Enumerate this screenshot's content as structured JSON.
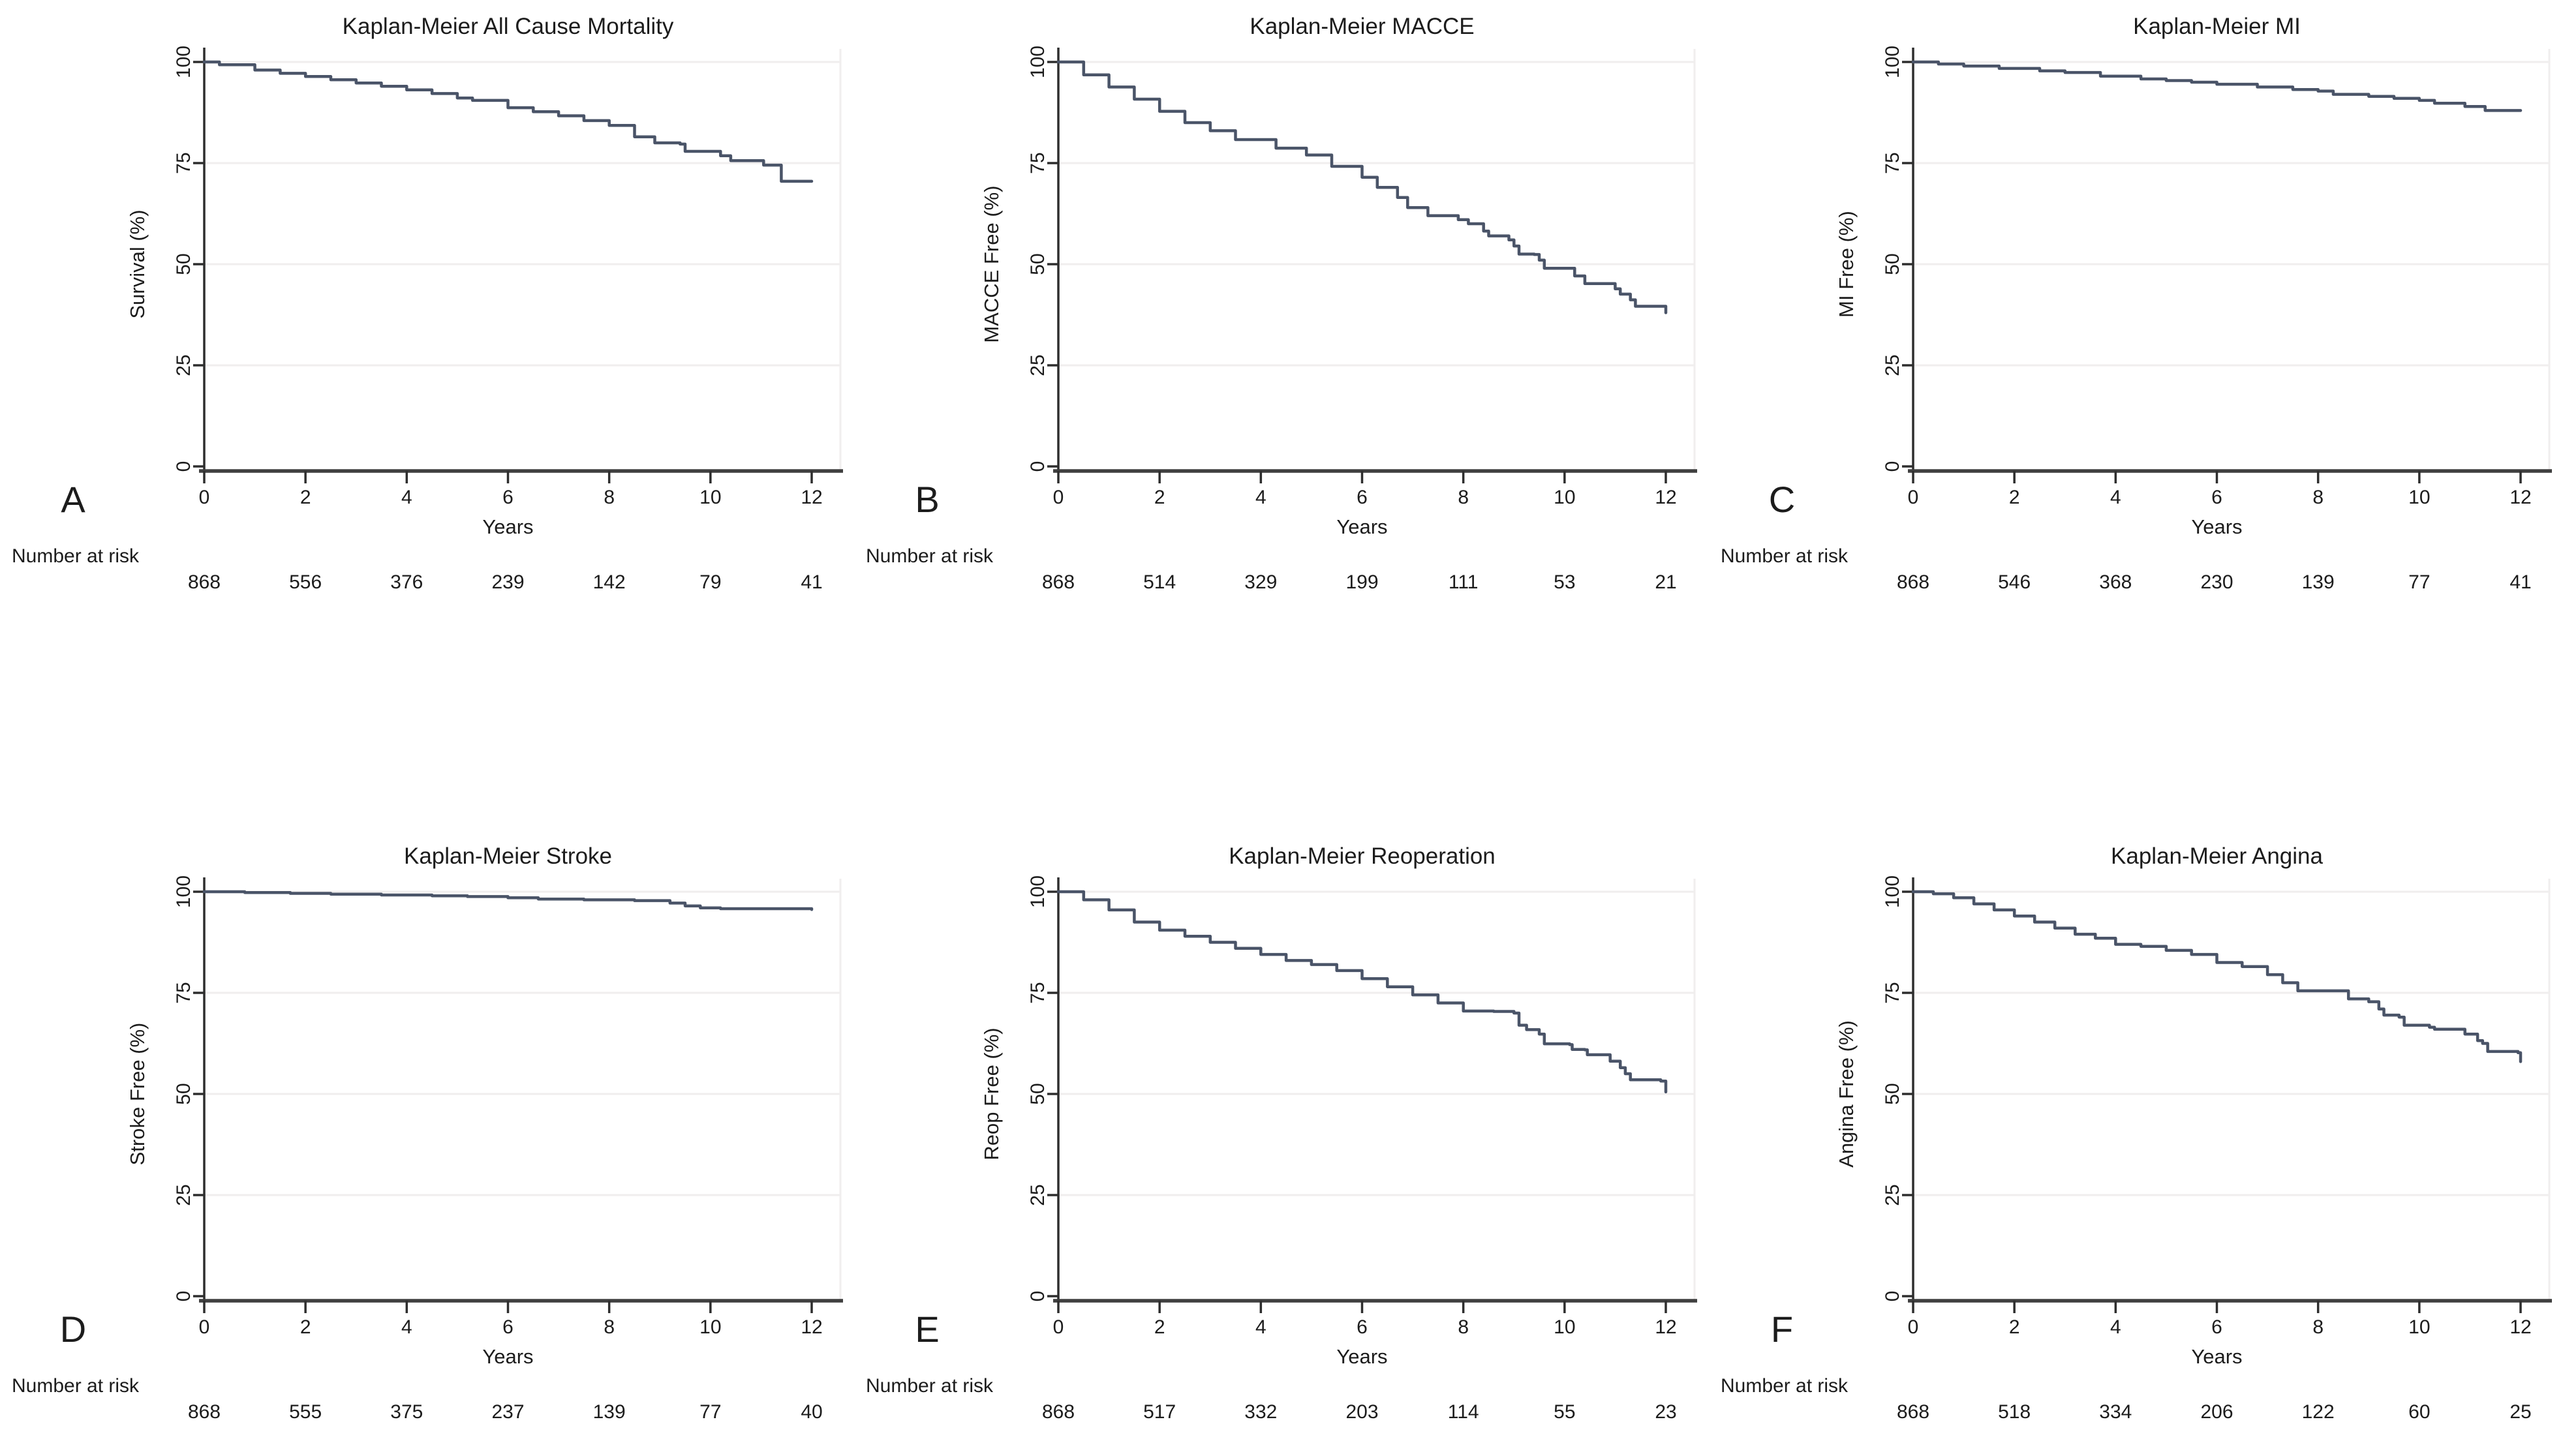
{
  "figure": {
    "number_at_risk_label": "Number at risk",
    "line_color": "#4a5468",
    "axis_color": "#3f3f3f",
    "grid_color": "#f0eeee",
    "text_color": "#1c1c1c",
    "background_color": "#ffffff",
    "panel_labels": [
      "A",
      "B",
      "C",
      "D",
      "E",
      "F"
    ]
  },
  "chart_data": [
    {
      "panel_label": "A",
      "type": "line",
      "step": true,
      "title": "Kaplan-Meier All Cause Mortality",
      "xlabel": "Years",
      "ylabel": "Survival (%)",
      "xlim": [
        0,
        12
      ],
      "ylim": [
        0,
        100
      ],
      "xticks": [
        0,
        2,
        4,
        6,
        8,
        10,
        12
      ],
      "yticks": [
        0,
        25,
        50,
        75,
        100
      ],
      "legend": "none",
      "grid": "horizontal",
      "x": [
        0,
        0.3,
        1,
        1.5,
        2,
        2.5,
        3,
        3.5,
        4,
        4.5,
        5,
        5.3,
        6,
        6.5,
        7,
        7.5,
        8,
        8.5,
        8.9,
        9.4,
        9.5,
        10.1,
        10.2,
        10.4,
        11.0,
        11.05,
        11.3,
        11.4,
        12
      ],
      "y": [
        100,
        99.3,
        98,
        97.2,
        96.4,
        95.6,
        94.8,
        94,
        93.1,
        92.2,
        91.1,
        90.5,
        88.7,
        87.7,
        86.7,
        85.5,
        84.3,
        81.5,
        80,
        79.7,
        77.9,
        77.9,
        76.8,
        75.6,
        75.6,
        74.5,
        74.5,
        70.5,
        70.5
      ],
      "at_risk_times": [
        0,
        2,
        4,
        6,
        8,
        10,
        12
      ],
      "number_at_risk": [
        868,
        556,
        376,
        239,
        142,
        79,
        41
      ]
    },
    {
      "panel_label": "B",
      "type": "line",
      "step": true,
      "title": "Kaplan-Meier MACCE",
      "xlabel": "Years",
      "ylabel": "MACCE Free (%)",
      "xlim": [
        0,
        12
      ],
      "ylim": [
        0,
        100
      ],
      "xticks": [
        0,
        2,
        4,
        6,
        8,
        10,
        12
      ],
      "yticks": [
        0,
        25,
        50,
        75,
        100
      ],
      "legend": "none",
      "grid": "horizontal",
      "x": [
        0,
        0.5,
        1,
        1.5,
        2,
        2.5,
        3,
        3.5,
        4.3,
        4.9,
        5.4,
        6,
        6.3,
        6.7,
        6.9,
        7.3,
        7.9,
        8.1,
        8.4,
        8.5,
        8.9,
        9.0,
        9.1,
        9.4,
        9.5,
        9.6,
        10.1,
        10.2,
        10.4,
        10.9,
        11.0,
        11.1,
        11.3,
        11.4,
        11.9,
        12
      ],
      "y": [
        100,
        96.8,
        93.8,
        90.8,
        87.8,
        85,
        83,
        80.8,
        78.7,
        77,
        74.2,
        71.5,
        69,
        66.5,
        64,
        62,
        61,
        60,
        58.2,
        57,
        56,
        54.5,
        52.5,
        52.4,
        51,
        49,
        49,
        47.1,
        45.2,
        45.2,
        43.9,
        42.6,
        41.2,
        39.6,
        39.6,
        38
      ],
      "at_risk_times": [
        0,
        2,
        4,
        6,
        8,
        10,
        12
      ],
      "number_at_risk": [
        868,
        514,
        329,
        199,
        111,
        53,
        21
      ]
    },
    {
      "panel_label": "C",
      "type": "line",
      "step": true,
      "title": "Kaplan-Meier MI",
      "xlabel": "Years",
      "ylabel": "MI Free (%)",
      "xlim": [
        0,
        12
      ],
      "ylim": [
        0,
        100
      ],
      "xticks": [
        0,
        2,
        4,
        6,
        8,
        10,
        12
      ],
      "yticks": [
        0,
        25,
        50,
        75,
        100
      ],
      "legend": "none",
      "grid": "horizontal",
      "x": [
        0,
        0.5,
        1,
        1.7,
        2.5,
        3,
        3.7,
        4.5,
        5,
        5.5,
        6,
        6.8,
        7.5,
        8,
        8.3,
        9,
        9.5,
        10,
        10.3,
        10.9,
        11.3,
        12
      ],
      "y": [
        100,
        99.5,
        99,
        98.4,
        97.8,
        97.4,
        96.5,
        95.8,
        95.4,
        95,
        94.5,
        93.8,
        93.2,
        92.8,
        92,
        91.5,
        91,
        90.5,
        89.8,
        89,
        88,
        88
      ],
      "at_risk_times": [
        0,
        2,
        4,
        6,
        8,
        10,
        12
      ],
      "number_at_risk": [
        868,
        546,
        368,
        230,
        139,
        77,
        41
      ]
    },
    {
      "panel_label": "D",
      "type": "line",
      "step": true,
      "title": "Kaplan-Meier Stroke",
      "xlabel": "Years",
      "ylabel": "Stroke Free (%)",
      "xlim": [
        0,
        12
      ],
      "ylim": [
        0,
        100
      ],
      "xticks": [
        0,
        2,
        4,
        6,
        8,
        10,
        12
      ],
      "yticks": [
        0,
        25,
        50,
        75,
        100
      ],
      "legend": "none",
      "grid": "horizontal",
      "x": [
        0,
        0.8,
        1.7,
        2.5,
        3.5,
        4.5,
        5.2,
        6,
        6.6,
        7.5,
        8.5,
        9.2,
        9.5,
        9.8,
        10.2,
        12
      ],
      "y": [
        100,
        99.8,
        99.6,
        99.4,
        99.2,
        99,
        98.8,
        98.5,
        98.2,
        98,
        97.8,
        97.2,
        96.5,
        96,
        95.8,
        95.6
      ],
      "at_risk_times": [
        0,
        2,
        4,
        6,
        8,
        10,
        12
      ],
      "number_at_risk": [
        868,
        555,
        375,
        237,
        139,
        77,
        40
      ]
    },
    {
      "panel_label": "E",
      "type": "line",
      "step": true,
      "title": "Kaplan-Meier Reoperation",
      "xlabel": "Years",
      "ylabel": "Reop Free (%)",
      "xlim": [
        0,
        12
      ],
      "ylim": [
        0,
        100
      ],
      "xticks": [
        0,
        2,
        4,
        6,
        8,
        10,
        12
      ],
      "yticks": [
        0,
        25,
        50,
        75,
        100
      ],
      "legend": "none",
      "grid": "horizontal",
      "x": [
        0,
        0.5,
        1,
        1.5,
        2,
        2.5,
        3,
        3.5,
        4,
        4.5,
        5,
        5.5,
        6,
        6.5,
        7,
        7.5,
        8,
        8.6,
        9.0,
        9.1,
        9.25,
        9.5,
        9.6,
        10.1,
        10.15,
        10.4,
        10.45,
        10.85,
        10.9,
        11.1,
        11.2,
        11.3,
        11.9,
        12
      ],
      "y": [
        100,
        98,
        95.5,
        92.5,
        90.5,
        89,
        87.5,
        86,
        84.5,
        83,
        82,
        80.5,
        78.5,
        76.5,
        74.5,
        72.5,
        70.5,
        70.4,
        70,
        67,
        65.9,
        64.8,
        62.4,
        62.2,
        61,
        60.9,
        59.7,
        59.7,
        58.1,
        56.5,
        55,
        53.5,
        53.2,
        50.5
      ],
      "at_risk_times": [
        0,
        2,
        4,
        6,
        8,
        10,
        12
      ],
      "number_at_risk": [
        868,
        517,
        332,
        203,
        114,
        55,
        23
      ]
    },
    {
      "panel_label": "F",
      "type": "line",
      "step": true,
      "title": "Kaplan-Meier Angina",
      "xlabel": "Years",
      "ylabel": "Angina Free (%)",
      "xlim": [
        0,
        12
      ],
      "ylim": [
        0,
        100
      ],
      "xticks": [
        0,
        2,
        4,
        6,
        8,
        10,
        12
      ],
      "yticks": [
        0,
        25,
        50,
        75,
        100
      ],
      "legend": "none",
      "grid": "horizontal",
      "x": [
        0,
        0.4,
        0.8,
        1.2,
        1.6,
        2,
        2.4,
        2.8,
        3.2,
        3.6,
        4,
        4.5,
        5,
        5.5,
        6,
        6.5,
        7,
        7.3,
        7.6,
        8.4,
        8.6,
        9.0,
        9.2,
        9.3,
        9.6,
        9.7,
        10.2,
        10.3,
        10.9,
        11.1,
        11.15,
        11.25,
        11.35,
        11.95,
        12
      ],
      "y": [
        100,
        99.5,
        98.5,
        97,
        95.5,
        94,
        92.5,
        91,
        89.5,
        88.5,
        87,
        86.5,
        85.5,
        84.5,
        82.5,
        81.5,
        79.5,
        77.5,
        75.5,
        75.5,
        73.5,
        72.8,
        71,
        69.5,
        69,
        67,
        66.5,
        66,
        64.8,
        64.8,
        63.2,
        62.5,
        60.5,
        60.2,
        58
      ],
      "at_risk_times": [
        0,
        2,
        4,
        6,
        8,
        10,
        12
      ],
      "number_at_risk": [
        868,
        518,
        334,
        206,
        122,
        60,
        25
      ]
    }
  ]
}
